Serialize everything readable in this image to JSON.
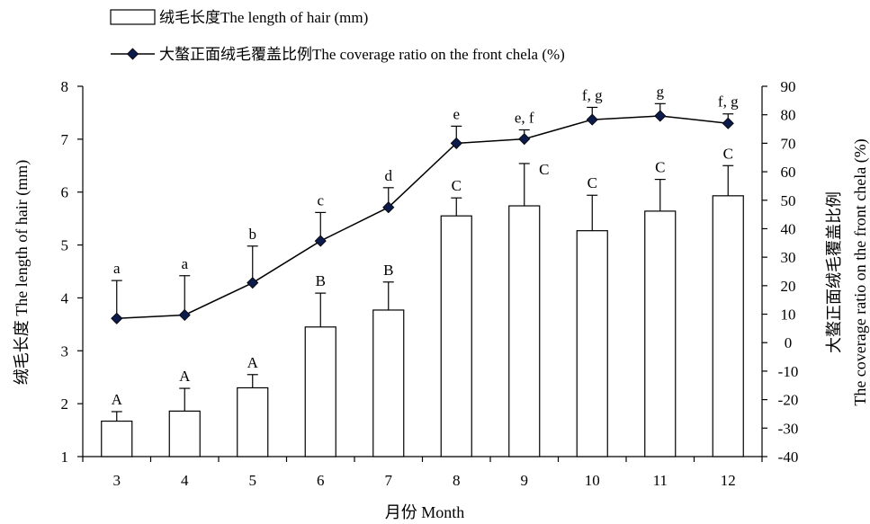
{
  "chart_data": {
    "type": "bar",
    "categories": [
      "3",
      "4",
      "5",
      "6",
      "7",
      "8",
      "9",
      "10",
      "11",
      "12"
    ],
    "xlabel": "月份 Month",
    "ylabel": "绒毛长度 The length of hair (mm)",
    "ylabel2_line1": "大螯正面绒毛覆盖比例",
    "ylabel2_line2": "The coverage ratio on the front chela (%)",
    "ylim": [
      1,
      8
    ],
    "y2lim": [
      -40,
      90
    ],
    "yticks": [
      1,
      2,
      3,
      4,
      5,
      6,
      7,
      8
    ],
    "y2ticks": [
      -40,
      -30,
      -20,
      -10,
      0,
      10,
      20,
      30,
      40,
      50,
      60,
      70,
      80,
      90
    ],
    "legend_position": "top-left",
    "series": [
      {
        "name": "绒毛长度The length of hair (mm)",
        "kind": "bar",
        "axis": "left",
        "values": [
          1.67,
          1.86,
          2.3,
          3.45,
          3.77,
          5.55,
          5.74,
          5.27,
          5.64,
          5.93
        ],
        "errors": [
          0.18,
          0.43,
          0.25,
          0.64,
          0.53,
          0.34,
          0.8,
          0.67,
          0.6,
          0.57
        ],
        "labels": [
          "A",
          "A",
          "A",
          "B",
          "B",
          "C",
          "C",
          "C",
          "C",
          "C"
        ]
      },
      {
        "name": "大螯正面绒毛覆盖比例The coverage ratio on the front chela (%)",
        "kind": "line",
        "axis": "right",
        "values": [
          8.5,
          9.7,
          21,
          35.7,
          47.5,
          70,
          71.5,
          78.3,
          79.6,
          77
        ],
        "errors": [
          13.3,
          13.8,
          12.9,
          10,
          6.9,
          6,
          3.2,
          4.3,
          4.3,
          3.3
        ],
        "labels": [
          "a",
          "a",
          "b",
          "c",
          "d",
          "e",
          "e, f",
          "f, g",
          "g",
          "f, g"
        ]
      }
    ]
  },
  "colors": {
    "line": "#000000",
    "marker": "#0d1b4a",
    "bar_fill": "#ffffff",
    "bar_stroke": "#000000"
  }
}
